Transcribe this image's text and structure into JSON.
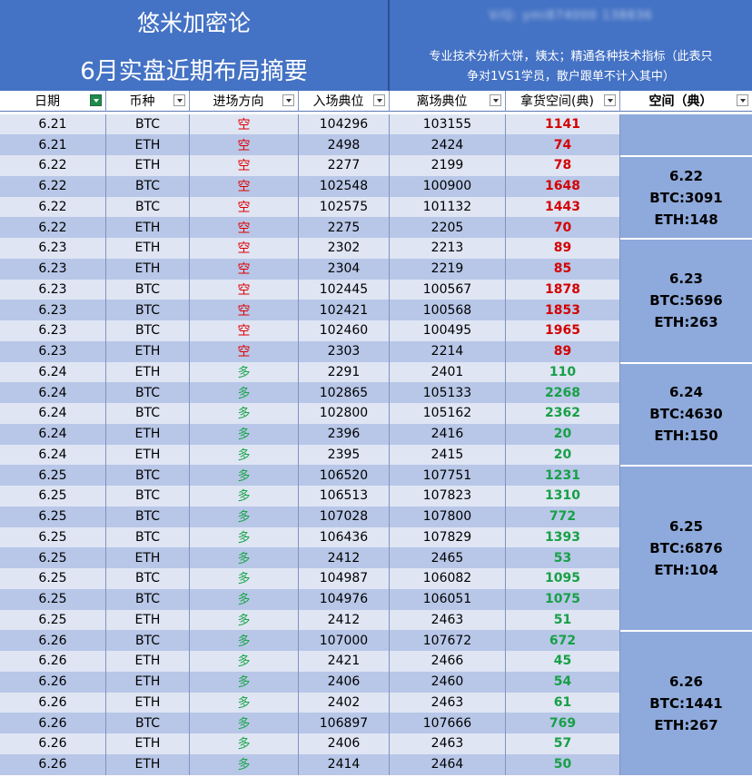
{
  "banner": {
    "title": "悠米加密论",
    "subtitle": "6月实盘近期布局摘要",
    "contact": "V/Q: ymi874000 138836",
    "note_line1": "专业技术分析大饼，姨太；精通各种技术指标（此表只",
    "note_line2": "争对1VS1学员，散户跟单不计入其中）"
  },
  "headers": {
    "date": "日期",
    "coin": "币种",
    "direction": "进场方向",
    "entry": "入场典位",
    "exit": "离场典位",
    "points": "拿货空间(典)",
    "space": "空间（典）"
  },
  "rows": [
    {
      "date": "6.21",
      "coin": "BTC",
      "dir": "空",
      "entry": "104296",
      "exit": "103155",
      "pts": "1141"
    },
    {
      "date": "6.21",
      "coin": "ETH",
      "dir": "空",
      "entry": "2498",
      "exit": "2424",
      "pts": "74"
    },
    {
      "date": "6.22",
      "coin": "ETH",
      "dir": "空",
      "entry": "2277",
      "exit": "2199",
      "pts": "78"
    },
    {
      "date": "6.22",
      "coin": "BTC",
      "dir": "空",
      "entry": "102548",
      "exit": "100900",
      "pts": "1648"
    },
    {
      "date": "6.22",
      "coin": "BTC",
      "dir": "空",
      "entry": "102575",
      "exit": "101132",
      "pts": "1443"
    },
    {
      "date": "6.22",
      "coin": "ETH",
      "dir": "空",
      "entry": "2275",
      "exit": "2205",
      "pts": "70"
    },
    {
      "date": "6.23",
      "coin": "ETH",
      "dir": "空",
      "entry": "2302",
      "exit": "2213",
      "pts": "89"
    },
    {
      "date": "6.23",
      "coin": "ETH",
      "dir": "空",
      "entry": "2304",
      "exit": "2219",
      "pts": "85"
    },
    {
      "date": "6.23",
      "coin": "BTC",
      "dir": "空",
      "entry": "102445",
      "exit": "100567",
      "pts": "1878"
    },
    {
      "date": "6.23",
      "coin": "BTC",
      "dir": "空",
      "entry": "102421",
      "exit": "100568",
      "pts": "1853"
    },
    {
      "date": "6.23",
      "coin": "BTC",
      "dir": "空",
      "entry": "102460",
      "exit": "100495",
      "pts": "1965"
    },
    {
      "date": "6.23",
      "coin": "ETH",
      "dir": "空",
      "entry": "2303",
      "exit": "2214",
      "pts": "89"
    },
    {
      "date": "6.24",
      "coin": "ETH",
      "dir": "多",
      "entry": "2291",
      "exit": "2401",
      "pts": "110"
    },
    {
      "date": "6.24",
      "coin": "BTC",
      "dir": "多",
      "entry": "102865",
      "exit": "105133",
      "pts": "2268"
    },
    {
      "date": "6.24",
      "coin": "BTC",
      "dir": "多",
      "entry": "102800",
      "exit": "105162",
      "pts": "2362"
    },
    {
      "date": "6.24",
      "coin": "ETH",
      "dir": "多",
      "entry": "2396",
      "exit": "2416",
      "pts": "20"
    },
    {
      "date": "6.24",
      "coin": "ETH",
      "dir": "多",
      "entry": "2395",
      "exit": "2415",
      "pts": "20"
    },
    {
      "date": "6.25",
      "coin": "BTC",
      "dir": "多",
      "entry": "106520",
      "exit": "107751",
      "pts": "1231"
    },
    {
      "date": "6.25",
      "coin": "BTC",
      "dir": "多",
      "entry": "106513",
      "exit": "107823",
      "pts": "1310"
    },
    {
      "date": "6.25",
      "coin": "BTC",
      "dir": "多",
      "entry": "107028",
      "exit": "107800",
      "pts": "772"
    },
    {
      "date": "6.25",
      "coin": "BTC",
      "dir": "多",
      "entry": "106436",
      "exit": "107829",
      "pts": "1393"
    },
    {
      "date": "6.25",
      "coin": "ETH",
      "dir": "多",
      "entry": "2412",
      "exit": "2465",
      "pts": "53"
    },
    {
      "date": "6.25",
      "coin": "BTC",
      "dir": "多",
      "entry": "104987",
      "exit": "106082",
      "pts": "1095"
    },
    {
      "date": "6.25",
      "coin": "BTC",
      "dir": "多",
      "entry": "104976",
      "exit": "106051",
      "pts": "1075"
    },
    {
      "date": "6.25",
      "coin": "ETH",
      "dir": "多",
      "entry": "2412",
      "exit": "2463",
      "pts": "51"
    },
    {
      "date": "6.26",
      "coin": "BTC",
      "dir": "多",
      "entry": "107000",
      "exit": "107672",
      "pts": "672"
    },
    {
      "date": "6.26",
      "coin": "ETH",
      "dir": "多",
      "entry": "2421",
      "exit": "2466",
      "pts": "45"
    },
    {
      "date": "6.26",
      "coin": "ETH",
      "dir": "多",
      "entry": "2406",
      "exit": "2460",
      "pts": "54"
    },
    {
      "date": "6.26",
      "coin": "ETH",
      "dir": "多",
      "entry": "2402",
      "exit": "2463",
      "pts": "61"
    },
    {
      "date": "6.26",
      "coin": "BTC",
      "dir": "多",
      "entry": "106897",
      "exit": "107666",
      "pts": "769"
    },
    {
      "date": "6.26",
      "coin": "ETH",
      "dir": "多",
      "entry": "2406",
      "exit": "2463",
      "pts": "57"
    },
    {
      "date": "6.26",
      "coin": "ETH",
      "dir": "多",
      "entry": "2414",
      "exit": "2464",
      "pts": "50"
    }
  ],
  "summaries": [
    {
      "date": "6.22",
      "btc": "BTC:3091",
      "eth": "ETH:148",
      "start": 2,
      "span": 4
    },
    {
      "date": "6.23",
      "btc": "BTC:5696",
      "eth": "ETH:263",
      "start": 6,
      "span": 6
    },
    {
      "date": "6.24",
      "btc": "BTC:4630",
      "eth": "ETH:150",
      "start": 12,
      "span": 5
    },
    {
      "date": "6.25",
      "btc": "BTC:6876",
      "eth": "ETH:104",
      "start": 17,
      "span": 8
    },
    {
      "date": "6.26",
      "btc": "BTC:1441",
      "eth": "ETH:267",
      "start": 25,
      "span": 7
    }
  ],
  "colors": {
    "banner": "#4472c4",
    "short": "#e00000",
    "long": "#1aa64a",
    "summary_bg": "#8ea9db"
  }
}
